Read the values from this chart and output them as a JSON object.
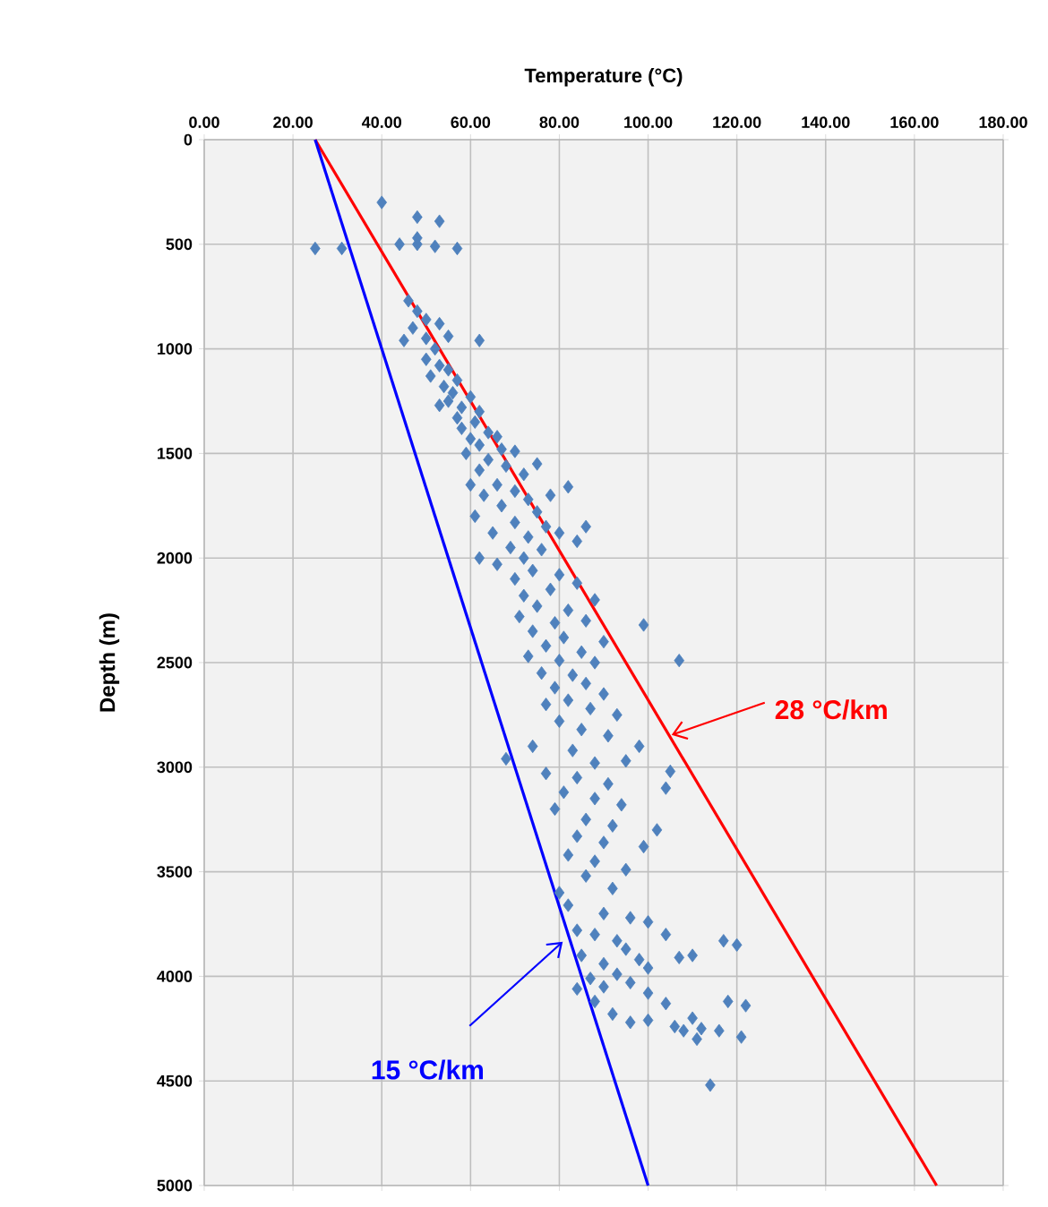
{
  "chart_data": {
    "type": "scatter",
    "xlabel": "Temperature (°C)",
    "ylabel": "Depth  (m)",
    "xlim": [
      0,
      180
    ],
    "ylim": [
      5000,
      0
    ],
    "xticks": [
      {
        "value": 0,
        "label": "0.00"
      },
      {
        "value": 20,
        "label": "20.00"
      },
      {
        "value": 40,
        "label": "40.00"
      },
      {
        "value": 60,
        "label": "60.00"
      },
      {
        "value": 80,
        "label": "80.00"
      },
      {
        "value": 100,
        "label": "100.00"
      },
      {
        "value": 120,
        "label": "120.00"
      },
      {
        "value": 140,
        "label": "140.00"
      },
      {
        "value": 160,
        "label": "160.00"
      },
      {
        "value": 180,
        "label": "180.00"
      }
    ],
    "yticks": [
      0,
      500,
      1000,
      1500,
      2000,
      2500,
      3000,
      3500,
      4000,
      4500,
      5000
    ],
    "grid": true,
    "series": [
      {
        "marker": "diamond",
        "color": "#4f81bd",
        "x": [
          40,
          48,
          53,
          25,
          31,
          44,
          48,
          52,
          57,
          48,
          46,
          48,
          50,
          47,
          53,
          45,
          50,
          62,
          55,
          52,
          50,
          53,
          55,
          51,
          57,
          54,
          56,
          60,
          55,
          58,
          53,
          62,
          57,
          61,
          58,
          64,
          60,
          66,
          62,
          67,
          59,
          70,
          64,
          68,
          62,
          72,
          75,
          60,
          66,
          70,
          63,
          73,
          78,
          67,
          75,
          82,
          61,
          70,
          77,
          65,
          73,
          80,
          69,
          76,
          84,
          72,
          62,
          86,
          66,
          74,
          80,
          70,
          84,
          78,
          72,
          88,
          75,
          82,
          71,
          79,
          86,
          99,
          74,
          81,
          77,
          85,
          73,
          80,
          88,
          107,
          90,
          76,
          83,
          86,
          79,
          90,
          82,
          77,
          87,
          93,
          80,
          85,
          91,
          74,
          83,
          98,
          68,
          88,
          95,
          77,
          84,
          91,
          105,
          81,
          88,
          94,
          104,
          79,
          86,
          92,
          84,
          90,
          99,
          82,
          88,
          95,
          102,
          86,
          80,
          92,
          82,
          90,
          96,
          84,
          100,
          88,
          93,
          104,
          117,
          120,
          85,
          95,
          98,
          90,
          100,
          93,
          87,
          107,
          110,
          84,
          90,
          96,
          100,
          88,
          104,
          92,
          110,
          112,
          108,
          116,
          118,
          122,
          121,
          100,
          106,
          114,
          111,
          96
        ],
        "values": [
          300,
          370,
          390,
          520,
          520,
          500,
          500,
          510,
          520,
          470,
          770,
          820,
          860,
          900,
          880,
          960,
          950,
          960,
          940,
          1000,
          1050,
          1080,
          1100,
          1130,
          1150,
          1180,
          1210,
          1230,
          1250,
          1280,
          1270,
          1300,
          1330,
          1350,
          1380,
          1400,
          1430,
          1420,
          1460,
          1480,
          1500,
          1490,
          1530,
          1560,
          1580,
          1600,
          1550,
          1650,
          1650,
          1680,
          1700,
          1720,
          1700,
          1750,
          1780,
          1660,
          1800,
          1830,
          1850,
          1880,
          1900,
          1880,
          1950,
          1960,
          1920,
          2000,
          2000,
          1850,
          2030,
          2060,
          2080,
          2100,
          2120,
          2150,
          2180,
          2200,
          2230,
          2250,
          2280,
          2310,
          2300,
          2320,
          2350,
          2380,
          2420,
          2450,
          2470,
          2490,
          2500,
          2490,
          2400,
          2550,
          2560,
          2600,
          2620,
          2650,
          2680,
          2700,
          2720,
          2750,
          2780,
          2820,
          2850,
          2900,
          2920,
          2900,
          2960,
          2980,
          2970,
          3030,
          3050,
          3080,
          3020,
          3120,
          3150,
          3180,
          3100,
          3200,
          3250,
          3280,
          3330,
          3360,
          3380,
          3420,
          3450,
          3490,
          3300,
          3520,
          3600,
          3580,
          3660,
          3700,
          3720,
          3780,
          3740,
          3800,
          3830,
          3800,
          3830,
          3850,
          3900,
          3870,
          3920,
          3940,
          3960,
          3990,
          4010,
          3910,
          3900,
          4060,
          4050,
          4030,
          4080,
          4120,
          4130,
          4180,
          4200,
          4250,
          4260,
          4260,
          4120,
          4140,
          4290,
          4210,
          4240,
          4520,
          4300,
          4220
        ]
      },
      {
        "type": "line",
        "marker": "none",
        "color": "#ff0000",
        "x": [
          25,
          165
        ],
        "values": [
          0,
          5000
        ]
      },
      {
        "type": "line",
        "marker": "none",
        "color": "#0000ff",
        "x": [
          25,
          100
        ],
        "values": [
          0,
          5000
        ]
      }
    ],
    "annotations": [
      {
        "text": "28 °C/km",
        "x": 105,
        "y": 2870
      },
      {
        "text": "15 °C/km",
        "x": 81,
        "y": 3830
      }
    ]
  }
}
